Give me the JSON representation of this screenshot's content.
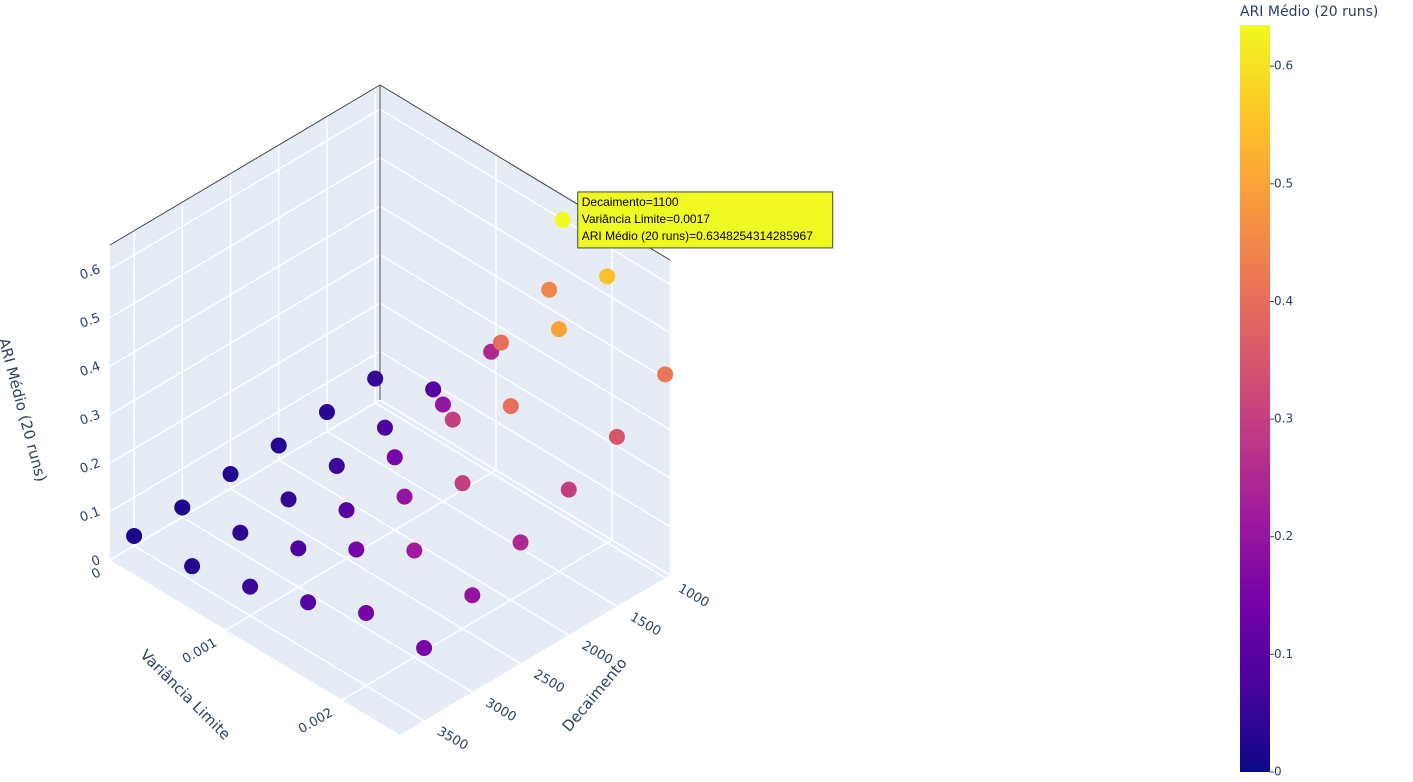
{
  "chart_data": {
    "type": "scatter3d",
    "x_title": "Decaimento",
    "y_title": "Variância Limite",
    "z_title": "ARI Médio (20 runs)",
    "xlim": [
      950,
      3750
    ],
    "ylim": [
      0,
      0.0025
    ],
    "zlim": [
      0,
      0.65
    ],
    "xticks": [
      1000,
      1500,
      2000,
      2500,
      3000,
      3500
    ],
    "yticks": [
      0,
      0.001,
      0.002
    ],
    "zticks": [
      0,
      0.1,
      0.2,
      0.3,
      0.4,
      0.5,
      0.6
    ],
    "grid": true,
    "colorbar": {
      "title": "ARI Médio (20 runs)",
      "clim": [
        0,
        0.635
      ],
      "ticks": [
        0,
        0.1,
        0.2,
        0.3,
        0.4,
        0.5,
        0.6
      ],
      "colorscale": [
        "#0d0887",
        "#46039f",
        "#7201a8",
        "#9c179e",
        "#bd3786",
        "#d8576b",
        "#ed7953",
        "#fb9f3a",
        "#fdca26",
        "#f0f921"
      ]
    },
    "series": [
      {
        "x": [
          1000,
          1000,
          1000,
          1000,
          1000,
          1000,
          1500,
          1500,
          1500,
          1500,
          1500,
          1500,
          2000,
          2000,
          2000,
          2000,
          2000,
          2000,
          2500,
          2500,
          2500,
          2500,
          2500,
          2500,
          3000,
          3000,
          3000,
          3000,
          3000,
          3000,
          3500,
          3500,
          3500,
          3500,
          3500,
          3500,
          1100
        ],
        "y": [
          0,
          0.0005,
          0.001,
          0.0015,
          0.002,
          0.0025,
          0,
          0.0005,
          0.001,
          0.0015,
          0.002,
          0.0025,
          0,
          0.0005,
          0.001,
          0.0015,
          0.002,
          0.0025,
          0,
          0.0005,
          0.001,
          0.0015,
          0.002,
          0.0025,
          0,
          0.0005,
          0.001,
          0.0015,
          0.002,
          0.0025,
          0,
          0.0005,
          0.001,
          0.0015,
          0.002,
          0.0025,
          0.0017
        ],
        "z": [
          0.05,
          0.1,
          0.25,
          0.45,
          0.55,
          0.42,
          0.04,
          0.08,
          0.2,
          0.4,
          0.5,
          0.35,
          0.03,
          0.06,
          0.15,
          0.3,
          0.4,
          0.3,
          0.03,
          0.05,
          0.1,
          0.2,
          0.3,
          0.25,
          0.02,
          0.04,
          0.08,
          0.15,
          0.22,
          0.2,
          0.02,
          0.03,
          0.06,
          0.1,
          0.15,
          0.15,
          0.6348254314285967
        ]
      }
    ],
    "hover": {
      "lines": [
        "Decaimento=1100",
        "Variância Limite=0.0017",
        "ARI Médio (20 runs)=0.6348254314285967"
      ]
    }
  }
}
